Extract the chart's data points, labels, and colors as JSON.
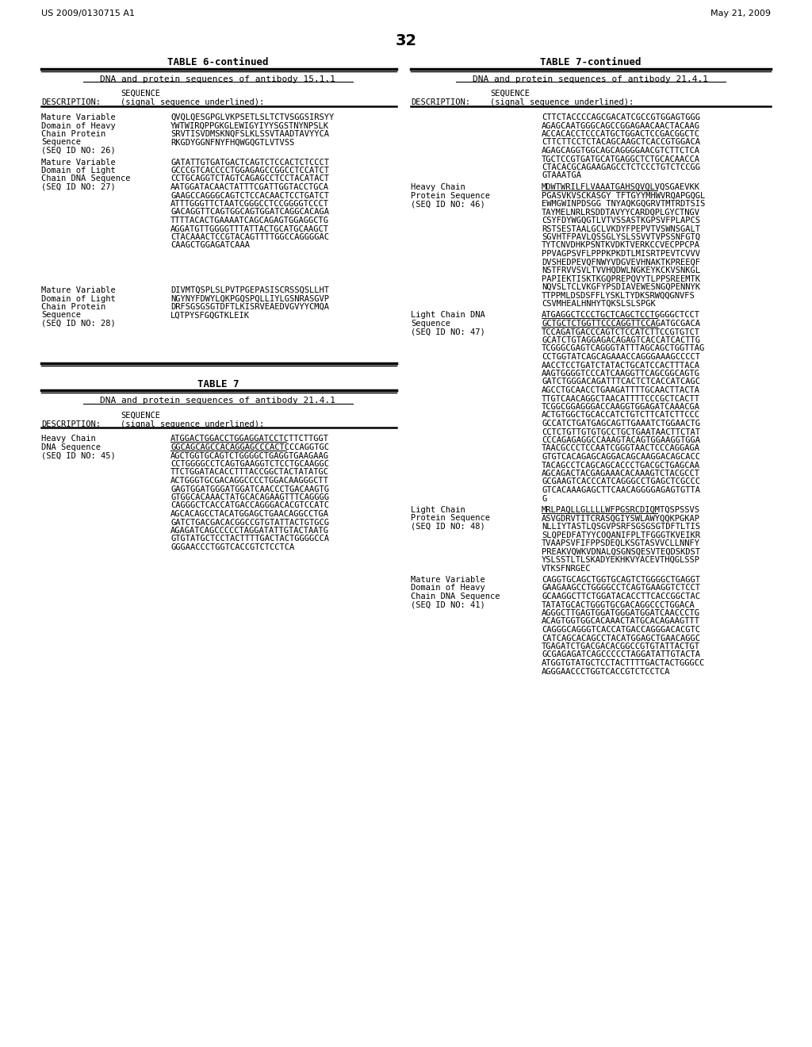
{
  "page_number": "32",
  "header_left": "US 2009/0130715 A1",
  "header_right": "May 21, 2009",
  "table6c_title": "TABLE 6-continued",
  "table6c_subtitle": "DNA and protein sequences of antibody 15.1.1",
  "table6c_rows": [
    {
      "label": [
        "Mature Variable",
        "Domain of Heavy",
        "Chain Protein",
        "Sequence",
        "(SEQ ID NO: 26)"
      ],
      "seq": [
        "QVQLQESGPGLVKPSETLSLTCTVSGGSIRSYY",
        "YWTWIRQPPGKGLEWIGYIYYSGSTNYNPSLK",
        "SRVTISVDMSKNQFSLKLSSVTAADTAVYYCA",
        "RKGDYGGNFNYFHQWGQGTLVTVSS"
      ]
    },
    {
      "label": [
        "Mature Variable",
        "Domain of Light",
        "Chain DNA Sequence",
        "(SEQ ID NO: 27)"
      ],
      "seq": [
        "GATATTGTGATGACTCAGTCTCCACTCTCCCT",
        "GCCCGTCACCCCTGGAGAGCCGGCCTCCATCT",
        "CCTGCAGGTCTAGTCAGAGCCTCCTACATACT",
        "AATGGATACAACTATTTCGATTGGTACCTGCA",
        "GAAGCCAGGGCAGTCTCCACAACTCCTGATCT",
        "ATTTGGGTTCTAATCGGGCCTCCGGGGTCCCT",
        "GACAGGTTCAGTGGCAGTGGATCAGGCACAGA",
        "TTTTACACTGAAAATCAGCAGAGTGGAGGCTG",
        "AGGATGTTGGGGTTTATTACTGCATGCAAGCT",
        "CTACAAACTCCGTACAGTTTTGGCCAGGGGAC",
        "CAAGCTGGAGATCAAA"
      ]
    },
    {
      "label": [
        "Mature Variable",
        "Domain of Light",
        "Chain Protein",
        "Sequence",
        "(SEQ ID NO: 28)"
      ],
      "seq": [
        "DIVMTQSPLSLPVTPGEPASISCRSSQSLLHT",
        "NGYNYFDWYLQKPGQSPQLLIYLGSNRASGVP",
        "DRFSGSGSGTDFTLKISRVEAEDVGVYYCMQA",
        "LQTPYSFGQGTKLEIK"
      ]
    }
  ],
  "table7_title": "TABLE 7",
  "table7_subtitle": "DNA and protein sequences of antibody 21.4.1",
  "table7_rows": [
    {
      "label": [
        "Heavy Chain",
        "DNA Sequence",
        "(SEQ ID NO: 45)"
      ],
      "seq_underline": 2,
      "seq": [
        "ATGGACTGGACCTGGAGGATCCTCTTCTTGGT",
        "GGCAGCAGCCACAGGAGCCCACTCCCAGGTGC",
        "AGCTGGTGCAGTCTGGGGCTGAGGTGAAGAAG",
        "CCTGGGGCCTCAGTGAAGGTCTCCTGCAAGGC",
        "TTCTGGATACACCTTTACCGGCTACTATATGC",
        "ACTGGGTGCGACAGGCCCCTGGACAAGGGCTT",
        "GAGTGGATGGGATGGATCAACCCTGACAAGTG",
        "GTGGCACAAACTATGCACAGAAGTTTCAGGGG",
        "CAGGGCTCACCATGACCAGGGACACGTCCATC",
        "AGCACAGCCTACATGGAGCTGAACAGGCCTGA",
        "GATCTGACGACACGGCCGTGTATTACTGTGCG",
        "AGAGATCAGCCCCCTAGGATATTGTACTAATG",
        "GTGTATGCTCCTACTTTTGACTACTGGGGCCA",
        "GGGAACCCTGGTCACCGTCTCCTCA"
      ]
    }
  ],
  "table7c_title": "TABLE 7-continued",
  "table7c_subtitle": "DNA and protein sequences of antibody 21.4.1",
  "table7c_right_rows": [
    {
      "label": [],
      "seq": [
        "CTTCTACCCCAGCGACATCGCCGTGGAGTGGG",
        "AGAGCAATGGGCAGCCGGAGAACAACTACAAG",
        "ACCACACCTCCCATGCTGGACTCCGACGGCTC",
        "CTTCTTCCTCTACAGCAAGCTCACCGTGGACA",
        "AGAGCAGGTGGCAGCAGGGGAACGTCTTCTCA",
        "TGCTCCGTGATGCATGAGGCTCTGCACAACCA",
        "CTACACGCAGAAGAGCCTCTCCCTGTCTCCGG",
        "GTAAATGA"
      ]
    },
    {
      "label": [
        "Heavy Chain",
        "Protein Sequence",
        "(SEQ ID NO: 46)"
      ],
      "seq_underline": 1,
      "seq": [
        "MDWTWRILFLVAAATGAHSQVQLVQSGAEVKK",
        "PGASVKVSCKASGY TFTGYYMHWVRQAPGQGL",
        "EWMGWINPDSGG TNYAQKGQGRVTMTRDTSIS",
        "TAYMELNRLRSDDTAVYYCARDQPLGYCTNGV",
        "CSYFDYWGQGTLVTVSSASTKGPSVFPLAPCS",
        "RSTSESTAALGCLVKDYFPEPVTVSWNSGALT",
        "SGVHTFPAVLQSSGLYSLSSVVTVPSSNFGTQ",
        "TYTCNVDHKPSNTKVDKTVERKCCVECPPCPA",
        "PPVAGPSVFLPPPKPKDTLMISRTPEVTCVVV",
        "DVSHEDPEVQFNWYVDGVEVHNAKTKPREEQF",
        "NSTFRVVSVLTVVHQDWLNGKEYKCKVSNKGL",
        "PAPIEKTISKTKGQPREPQVYTLPPSREEMTK",
        "NQVSLTCLVKGFYPSDIAVEWESNGQPENNYK",
        "TTPPMLDSDSFFLYSKLTYDKSRWQQGNVFS",
        "CSVMHEALHNHYTQKSLSLSPGK"
      ]
    },
    {
      "label": [
        "Light Chain DNA",
        "Sequence",
        "(SEQ ID NO: 47)"
      ],
      "seq_underline": 2,
      "seq": [
        "ATGAGGCTCCCTGCTCAGCTCCTGGGGCTCCT",
        "GCTGCTCTGGTTCCCAGGTTCCAGATGCGACA",
        "TCCAGATGACCCAGTCTCCATCTTCCGTGTCT",
        "GCATCTGTAGGAGACAGAGTCACCATCACTTG",
        "TCGGGCGAGTCAGGGTATTTAGCAGCTGGTTAG",
        "CCTGGTATCAGCAGAAACCAGGGAAAGCCCCT",
        "AACCTCCTGATCTATACTGCATCCACTTTACA",
        "AAGTGGGGTCCCATCAAGGTTCAGCGGCAGTG",
        "GATCTGGGACAGATTTCACTCTCACCATCAGC",
        "AGCCTGCAACCTGAAGATTTTGCAACTTACTA",
        "TTGTCAACAGGCTAACATTTTCCCGCTCACTT",
        "TCGGCGGAGGGACCAAGGTGGAGATCAAACGA",
        "ACTGTGGCTGCACCATCTGTCTTCATCTTCCC",
        "GCCATCTGATGAGCAGTTGAAATCTGGAACTG",
        "CCTCTGTTGTGTGCCTGCTGAATAACTTCTAT",
        "CCCAGAGAGGCCAAAGTACAGTGGAAGGTGGA",
        "TAACGCCCTCCAATCGGGTAACTCCCAGGAGA",
        "GTGTCACAGAGCAGGACAGCAAGGACAGCACC",
        "TACAGCCTCAGCAGCACCCTGACGCTGAGCAA",
        "AGCAGACTACGAGAAACACAAAGTCTACGCCT",
        "GCGAAGTCACCCATCAGGGCCTGAGCTCGCCC",
        "GTCACAAAGAGCTTCAACAGGGGAGAGTGTTA",
        "G"
      ]
    },
    {
      "label": [
        "Light Chain",
        "Protein Sequence",
        "(SEQ ID NO: 48)"
      ],
      "seq_underline": 1,
      "seq": [
        "MRLPAQLLGLLLLWFPGSRCDIQMTQSPSSVS",
        "ASVGDRVTITCRASQGIYSWLAWYQQKPGKAP",
        "NLLIYTASTLQSGVPSRFSGSGSGTDFTLTIS",
        "SLQPEDFATYYCOQANIFPLTFGGGTKVEIKR",
        "TVAAPSVFIFPPSDEQLKSGTASVVCLLNNFY",
        "PREAKVQWKVDNALQSGNSQESVTEQDSKDST",
        "YSLSSTLTLSKADYEKHKVYACEVTHQGLSSP",
        "VTKSFNRGEC"
      ]
    },
    {
      "label": [
        "Mature Variable",
        "Domain of Heavy",
        "Chain DNA Sequence",
        "(SEQ ID NO: 41)"
      ],
      "seq": [
        "CAGGTGCAGCTGGTGCAGTCTGGGGCTGAGGT",
        "GAAGAAGCCTGGGGCCTCAGTGAAGGTCTCCT",
        "GCAAGGCTTCTGGATACACCTTCACCGGCTAC",
        "TATATGCACTGGGTGCGACAGGCCCTGGACA",
        "AGGGCTTGAGTGGATGGGATGGATCAACCCTG",
        "ACAGTGGTGGCACAAACTATGCACAGAAGTTT",
        "CAGGGCAGGGTCACCATGACCAGGGACACGTC",
        "CATCAGCACAGCCTACATGGAGCTGAACAGGC",
        "TGAGATCTGACGACACGGCCGTGTATTACTGT",
        "GCGAGAGATCAGCCCCCTAGGATATTGTACTA",
        "ATGGTGTATGCTCCTACTTTTGACTACTGGGCC",
        "AGGGAACCCTGGTCACCGTCTCCTCA"
      ]
    }
  ]
}
